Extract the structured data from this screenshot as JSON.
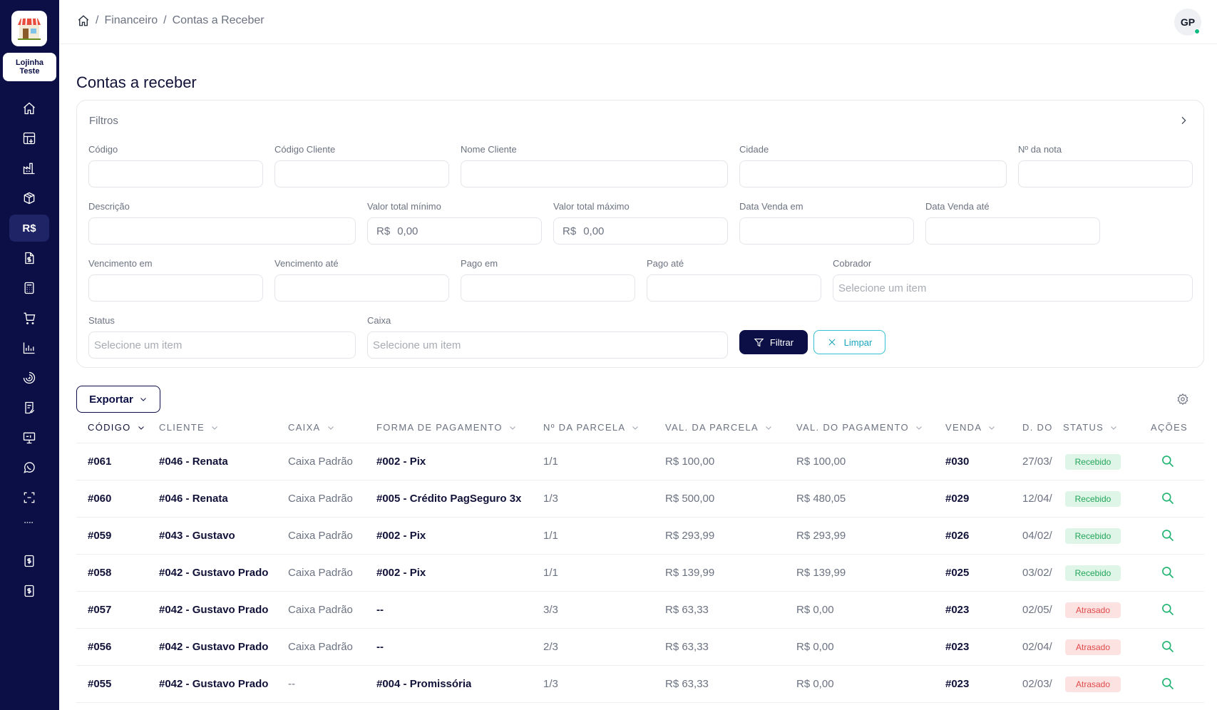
{
  "app": {
    "store_name": "Lojinha Teste"
  },
  "breadcrumb": {
    "items": [
      "Financeiro",
      "Contas a Receber"
    ]
  },
  "user": {
    "initials": "GP",
    "status_color": "#10b981"
  },
  "page": {
    "title": "Contas a receber"
  },
  "filters": {
    "title": "Filtros",
    "codigo": "Código",
    "codigo_cliente": "Código Cliente",
    "nome_cliente": "Nome Cliente",
    "cidade": "Cidade",
    "numero_nota": "Nº da nota",
    "descricao": "Descrição",
    "valor_min": {
      "label": "Valor total mínimo",
      "prefix": "R$",
      "value": "0,00"
    },
    "valor_max": {
      "label": "Valor total máximo",
      "prefix": "R$",
      "value": "0,00"
    },
    "data_venda_em": "Data Venda em",
    "data_venda_ate": "Data Venda até",
    "vencimento_em": "Vencimento em",
    "vencimento_ate": "Vencimento até",
    "pago_em": "Pago em",
    "pago_ate": "Pago até",
    "cobrador": {
      "label": "Cobrador",
      "placeholder": "Selecione um item"
    },
    "status": {
      "label": "Status",
      "placeholder": "Selecione um item"
    },
    "caixa": {
      "label": "Caixa",
      "placeholder": "Selecione um item"
    },
    "filter_button": "Filtrar",
    "clear_button": "Limpar"
  },
  "toolbar": {
    "export_label": "Exportar"
  },
  "table": {
    "headers": {
      "codigo": "CÓDIGO",
      "cliente": "CLIENTE",
      "caixa": "CAIXA",
      "forma": "FORMA DE PAGAMENTO",
      "parcela": "Nº DA PARCELA",
      "val_parcela": "VAL. DA PARCELA",
      "val_pagamento": "VAL. DO PAGAMENTO",
      "venda": "VENDA",
      "data": "D. DO",
      "status": "STATUS",
      "acoes": "AÇÕES"
    },
    "rows": [
      {
        "codigo": "#061",
        "cliente": "#046 - Renata",
        "caixa": "Caixa Padrão",
        "forma": "#002 - Pix",
        "parcela": "1/1",
        "val_parcela": "R$ 100,00",
        "val_pagamento": "R$ 100,00",
        "venda": "#030",
        "data": "27/03/",
        "status": "Recebido"
      },
      {
        "codigo": "#060",
        "cliente": "#046 - Renata",
        "caixa": "Caixa Padrão",
        "forma": "#005 - Crédito PagSeguro 3x",
        "parcela": "1/3",
        "val_parcela": "R$ 500,00",
        "val_pagamento": "R$ 480,05",
        "venda": "#029",
        "data": "12/04/",
        "status": "Recebido"
      },
      {
        "codigo": "#059",
        "cliente": "#043 - Gustavo",
        "caixa": "Caixa Padrão",
        "forma": "#002 - Pix",
        "parcela": "1/1",
        "val_parcela": "R$ 293,99",
        "val_pagamento": "R$ 293,99",
        "venda": "#026",
        "data": "04/02/",
        "status": "Recebido"
      },
      {
        "codigo": "#058",
        "cliente": "#042 - Gustavo Prado",
        "caixa": "Caixa Padrão",
        "forma": "#002 - Pix",
        "parcela": "1/1",
        "val_parcela": "R$ 139,99",
        "val_pagamento": "R$ 139,99",
        "venda": "#025",
        "data": "03/02/",
        "status": "Recebido"
      },
      {
        "codigo": "#057",
        "cliente": "#042 - Gustavo Prado",
        "caixa": "Caixa Padrão",
        "forma": "--",
        "parcela": "3/3",
        "val_parcela": "R$ 63,33",
        "val_pagamento": "R$ 0,00",
        "venda": "#023",
        "data": "02/05/",
        "status": "Atrasado"
      },
      {
        "codigo": "#056",
        "cliente": "#042 - Gustavo Prado",
        "caixa": "Caixa Padrão",
        "forma": "--",
        "parcela": "2/3",
        "val_parcela": "R$ 63,33",
        "val_pagamento": "R$ 0,00",
        "venda": "#023",
        "data": "02/04/",
        "status": "Atrasado"
      },
      {
        "codigo": "#055",
        "cliente": "#042 - Gustavo Prado",
        "caixa": "--",
        "forma": "#004 - Promissória",
        "parcela": "1/3",
        "val_parcela": "R$ 63,33",
        "val_pagamento": "R$ 0,00",
        "venda": "#023",
        "data": "02/03/",
        "status": "Atrasado"
      }
    ]
  },
  "colors": {
    "sidebar": "#0b0f45",
    "accent": "#0b0f45",
    "success": "#22a559",
    "danger": "#e04a4a",
    "clear": "#18a5bd"
  }
}
